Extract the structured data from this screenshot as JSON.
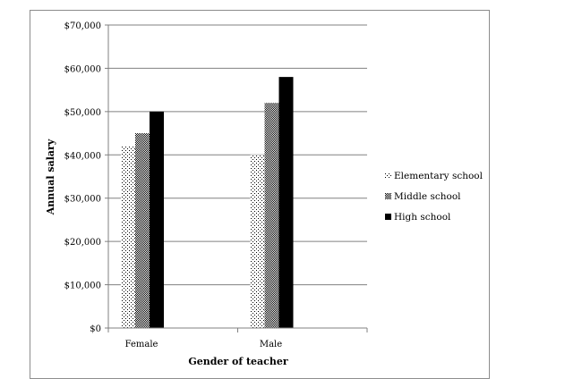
{
  "chart_data": {
    "type": "bar",
    "categories": [
      "Female",
      "Male"
    ],
    "series": [
      {
        "name": "Elementary school",
        "values": [
          42000,
          40000
        ],
        "pattern": "sparse-dots"
      },
      {
        "name": "Middle school",
        "values": [
          45000,
          52000
        ],
        "pattern": "dense-checker"
      },
      {
        "name": "High school",
        "values": [
          50000,
          58000
        ],
        "pattern": "solid"
      }
    ],
    "xlabel": "Gender of teacher",
    "ylabel": "Annual salary",
    "ylim": [
      0,
      70000
    ],
    "yticks": [
      0,
      10000,
      20000,
      30000,
      40000,
      50000,
      60000,
      70000
    ],
    "ytick_labels": [
      "$0",
      "$10,000",
      "$20,000",
      "$30,000",
      "$40,000",
      "$50,000",
      "$60,000",
      "$70,000"
    ],
    "grid": true,
    "legend_position": "right",
    "colors": {
      "bar": "#000000",
      "grid": "#808080",
      "axis": "#808080"
    }
  }
}
